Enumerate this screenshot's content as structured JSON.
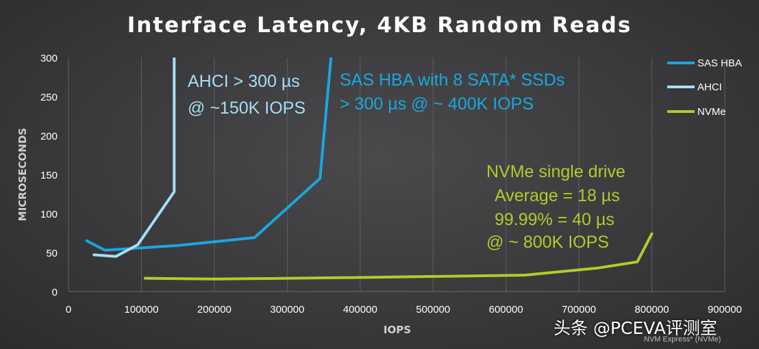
{
  "chart_data": {
    "type": "line",
    "title": "Interface Latency, 4KB Random Reads",
    "xlabel": "IOPS",
    "ylabel": "MICROSECONDS",
    "xlim": [
      0,
      900000
    ],
    "ylim": [
      0,
      300
    ],
    "x_ticks": [
      "0",
      "100000",
      "200000",
      "300000",
      "400000",
      "500000",
      "600000",
      "700000",
      "800000",
      "900000"
    ],
    "y_ticks": [
      "0",
      "50",
      "100",
      "150",
      "200",
      "250",
      "300"
    ],
    "grid": "vertical",
    "legend_position": "top-right",
    "series": [
      {
        "name": "SAS HBA",
        "color": "#1aa7df",
        "points": [
          [
            25000,
            65
          ],
          [
            50000,
            53
          ],
          [
            100000,
            56
          ],
          [
            150000,
            59
          ],
          [
            255000,
            69
          ],
          [
            345000,
            145
          ],
          [
            360000,
            300
          ]
        ]
      },
      {
        "name": "AHCI",
        "color": "#a9ddf7",
        "points": [
          [
            35000,
            47
          ],
          [
            65000,
            45
          ],
          [
            95000,
            60
          ],
          [
            145000,
            128
          ],
          [
            145000,
            300
          ]
        ]
      },
      {
        "name": "NVMe",
        "color": "#b2cb2c",
        "points": [
          [
            105000,
            17
          ],
          [
            200000,
            16
          ],
          [
            400000,
            18
          ],
          [
            625000,
            21
          ],
          [
            725000,
            30
          ],
          [
            780000,
            38
          ],
          [
            800000,
            74
          ]
        ]
      }
    ],
    "annotations": [
      {
        "text": "AHCI > 300 µs",
        "color": "#a9ddf7"
      },
      {
        "text": "@ ~150K IOPS",
        "color": "#a9ddf7"
      },
      {
        "text": "SAS HBA with 8 SATA* SSDs",
        "color": "#1aa7df"
      },
      {
        "text": " > 300 µs @ ~ 400K IOPS",
        "color": "#1aa7df"
      },
      {
        "text": "NVMe single drive",
        "color": "#b2cb2c"
      },
      {
        "text": "Average = 18 µs",
        "color": "#b2cb2c"
      },
      {
        "text": "99.99% = 40 µs",
        "color": "#b2cb2c"
      },
      {
        "text": "@ ~ 800K IOPS",
        "color": "#b2cb2c"
      }
    ]
  },
  "watermark": "头条 @PCEVA评测室",
  "credit": "NVM Express* (NVMe)"
}
